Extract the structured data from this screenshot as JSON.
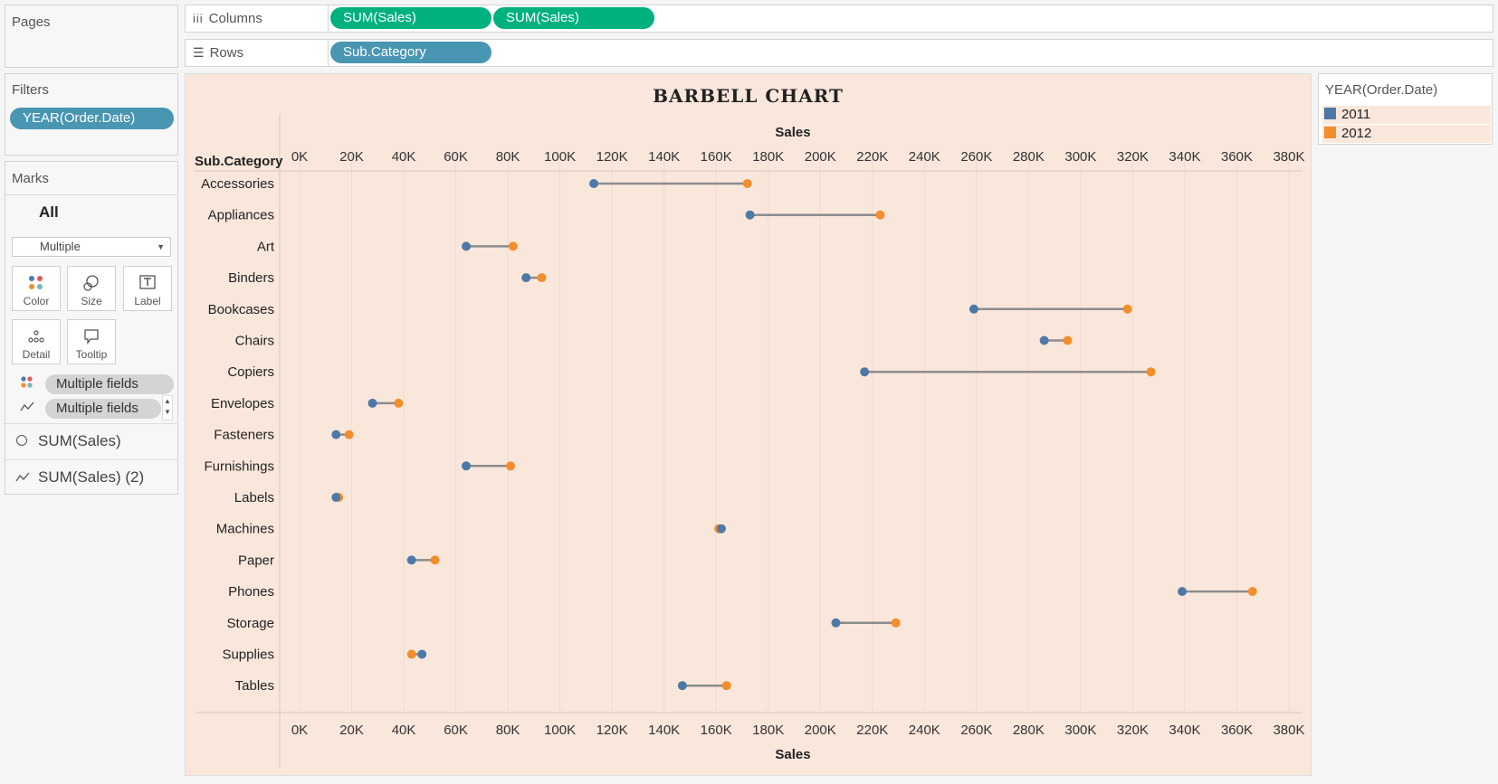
{
  "shelves": {
    "pages_label": "Pages",
    "columns_label": "Columns",
    "columns_pills": [
      "SUM(Sales)",
      "SUM(Sales)"
    ],
    "rows_label": "Rows",
    "rows_pills": [
      "Sub.Category"
    ]
  },
  "filters": {
    "label": "Filters",
    "pill": "YEAR(Order.Date)"
  },
  "marks": {
    "label": "Marks",
    "all_label": "All",
    "mark_type": "Multiple",
    "buttons": {
      "color": "Color",
      "size": "Size",
      "label": "Label",
      "detail": "Detail",
      "tooltip": "Tooltip"
    },
    "field_pills": [
      "Multiple fields",
      "Multiple fields"
    ],
    "layers": [
      "SUM(Sales)",
      "SUM(Sales) (2)"
    ]
  },
  "legend": {
    "title": "YEAR(Order.Date)",
    "items": [
      {
        "label": "2011",
        "color": "#4e79a7"
      },
      {
        "label": "2012",
        "color": "#f28e2b"
      }
    ]
  },
  "colors": {
    "accent_green": "#00b180",
    "pill_blue": "#4996b2",
    "chart_bg": "#fae7dc",
    "line": "#8c8c8c"
  },
  "chart_data": {
    "type": "barbell",
    "title": "BARBELL CHART",
    "xlabel": "Sales",
    "ylabel": "Sub.Category",
    "xlim": [
      0,
      380000
    ],
    "xticks": [
      "0K",
      "20K",
      "40K",
      "60K",
      "80K",
      "100K",
      "120K",
      "140K",
      "160K",
      "180K",
      "200K",
      "220K",
      "240K",
      "260K",
      "280K",
      "300K",
      "320K",
      "340K",
      "360K",
      "380K"
    ],
    "categories": [
      "Accessories",
      "Appliances",
      "Art",
      "Binders",
      "Bookcases",
      "Chairs",
      "Copiers",
      "Envelopes",
      "Fasteners",
      "Furnishings",
      "Labels",
      "Machines",
      "Paper",
      "Phones",
      "Storage",
      "Supplies",
      "Tables"
    ],
    "series": [
      {
        "name": "2011",
        "values": [
          113000,
          173000,
          64000,
          87000,
          259000,
          286000,
          217000,
          28000,
          14000,
          64000,
          14000,
          162000,
          43000,
          339000,
          206000,
          47000,
          147000
        ]
      },
      {
        "name": "2012",
        "values": [
          172000,
          223000,
          82000,
          93000,
          318000,
          295000,
          327000,
          38000,
          19000,
          81000,
          15000,
          161000,
          52000,
          366000,
          229000,
          43000,
          164000
        ]
      }
    ],
    "grid": true,
    "legend": "right"
  }
}
